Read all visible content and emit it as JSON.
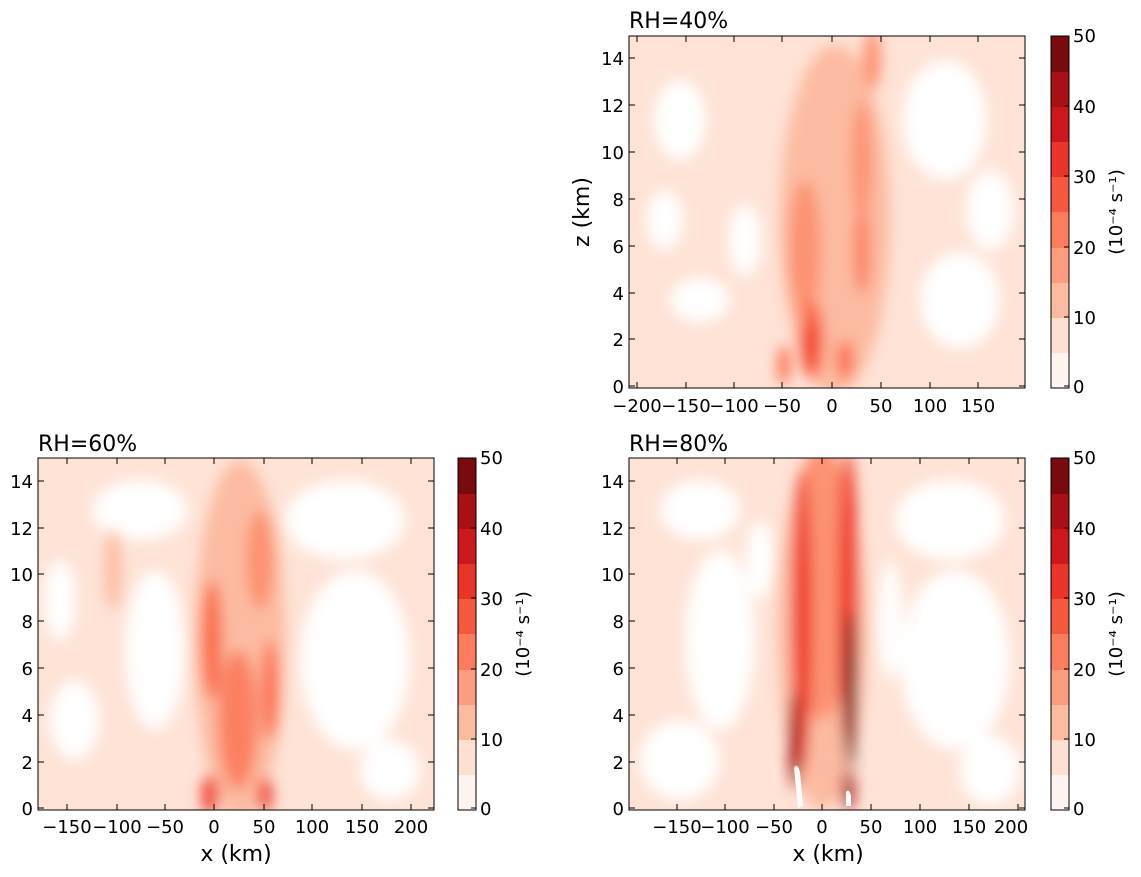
{
  "chart_data": [
    {
      "type": "heatmap",
      "title": "RH=40%",
      "xlabel": "",
      "ylabel": "z (km)",
      "xlim": [
        -195,
        195
      ],
      "ylim": [
        0,
        15
      ],
      "xticks": [
        "−200",
        "−150",
        "−100",
        "−50",
        "0",
        "50",
        "100",
        "150"
      ],
      "xtick_values": [
        -200,
        -150,
        -100,
        -50,
        0,
        50,
        100,
        150
      ],
      "yticks": [
        "0",
        "2",
        "4",
        "6",
        "8",
        "10",
        "12",
        "14"
      ],
      "ytick_values": [
        0,
        2,
        4,
        6,
        8,
        10,
        12,
        14
      ],
      "colorbar": {
        "label": "(10⁻⁴ s⁻¹)",
        "ticks": [
          "0",
          "10",
          "20",
          "30",
          "40",
          "50"
        ],
        "tick_values": [
          0,
          10,
          20,
          30,
          40,
          50
        ],
        "levels": [
          0,
          5,
          10,
          15,
          20,
          25,
          30,
          35,
          40,
          45,
          50
        ]
      },
      "features": [
        {
          "x": -8,
          "z": 8,
          "sx": 28,
          "sz": 6,
          "value": 12
        },
        {
          "x": -25,
          "z": 5,
          "sx": 10,
          "sz": 3,
          "value": 22
        },
        {
          "x": -22,
          "z": 1.5,
          "sx": 6,
          "sz": 1.4,
          "value": 38
        },
        {
          "x": 12,
          "z": 1,
          "sx": 7,
          "sz": 1.2,
          "value": 28
        },
        {
          "x": 40,
          "z": 10,
          "sx": 6,
          "sz": 4,
          "value": 18
        },
        {
          "x": -100,
          "z": 6,
          "sx": 40,
          "sz": 5,
          "value": 4
        }
      ]
    },
    {
      "type": "heatmap",
      "title": "RH=60%",
      "xlabel": "x (km)",
      "ylabel": "",
      "xlim": [
        -175,
        220
      ],
      "ylim": [
        0,
        15
      ],
      "xticks": [
        "−150",
        "−100",
        "−50",
        "0",
        "50",
        "100",
        "150",
        "200"
      ],
      "xtick_values": [
        -150,
        -100,
        -50,
        0,
        50,
        100,
        150,
        200
      ],
      "yticks": [
        "0",
        "2",
        "4",
        "6",
        "8",
        "10",
        "12",
        "14"
      ],
      "ytick_values": [
        0,
        2,
        4,
        6,
        8,
        10,
        12,
        14
      ],
      "colorbar": {
        "label": "(10⁻⁴ s⁻¹)",
        "ticks": [
          "0",
          "10",
          "20",
          "30",
          "40",
          "50"
        ],
        "tick_values": [
          0,
          10,
          20,
          30,
          40,
          50
        ],
        "levels": [
          0,
          5,
          10,
          15,
          20,
          25,
          30,
          35,
          40,
          45,
          50
        ]
      },
      "features": [
        {
          "x": 28,
          "z": 7,
          "sx": 38,
          "sz": 8,
          "value": 16
        },
        {
          "x": -5,
          "z": 7,
          "sx": 8,
          "sz": 3,
          "value": 24
        },
        {
          "x": 50,
          "z": 5,
          "sx": 8,
          "sz": 4,
          "value": 24
        },
        {
          "x": -2,
          "z": 0.5,
          "sx": 5,
          "sz": 1,
          "value": 34
        },
        {
          "x": 52,
          "z": 0.5,
          "sx": 5,
          "sz": 1,
          "value": 32
        },
        {
          "x": -105,
          "z": 10,
          "sx": 12,
          "sz": 3,
          "value": 8
        }
      ]
    },
    {
      "type": "heatmap",
      "title": "RH=80%",
      "xlabel": "x (km)",
      "ylabel": "",
      "xlim": [
        -190,
        205
      ],
      "ylim": [
        0,
        15
      ],
      "xticks": [
        "−150",
        "−100",
        "−50",
        "0",
        "50",
        "100",
        "150",
        "200"
      ],
      "xtick_values": [
        -150,
        -100,
        -50,
        0,
        50,
        100,
        150,
        200
      ],
      "yticks": [
        "0",
        "2",
        "4",
        "6",
        "8",
        "10",
        "12",
        "14"
      ],
      "ytick_values": [
        0,
        2,
        4,
        6,
        8,
        10,
        12,
        14
      ],
      "colorbar": {
        "label": "(10⁻⁴ s⁻¹)",
        "ticks": [
          "0",
          "10",
          "20",
          "30",
          "40",
          "50"
        ],
        "tick_values": [
          0,
          10,
          20,
          30,
          40,
          50
        ],
        "levels": [
          0,
          5,
          10,
          15,
          20,
          25,
          30,
          35,
          40,
          45,
          50
        ]
      },
      "features": [
        {
          "x": 0,
          "z": 7,
          "sx": 32,
          "sz": 8,
          "value": 18
        },
        {
          "x": -20,
          "z": 6,
          "sx": 7,
          "sz": 6,
          "value": 34
        },
        {
          "x": 28,
          "z": 6,
          "sx": 7,
          "sz": 6,
          "value": 36
        },
        {
          "x": -28,
          "z": 2,
          "sx": 5,
          "sz": 1.5,
          "value": 46
        },
        {
          "x": 25,
          "z": 3,
          "sx": 5,
          "sz": 2,
          "value": 48
        },
        {
          "x": -100,
          "z": 5,
          "sx": 40,
          "sz": 5,
          "value": 4
        }
      ]
    }
  ]
}
